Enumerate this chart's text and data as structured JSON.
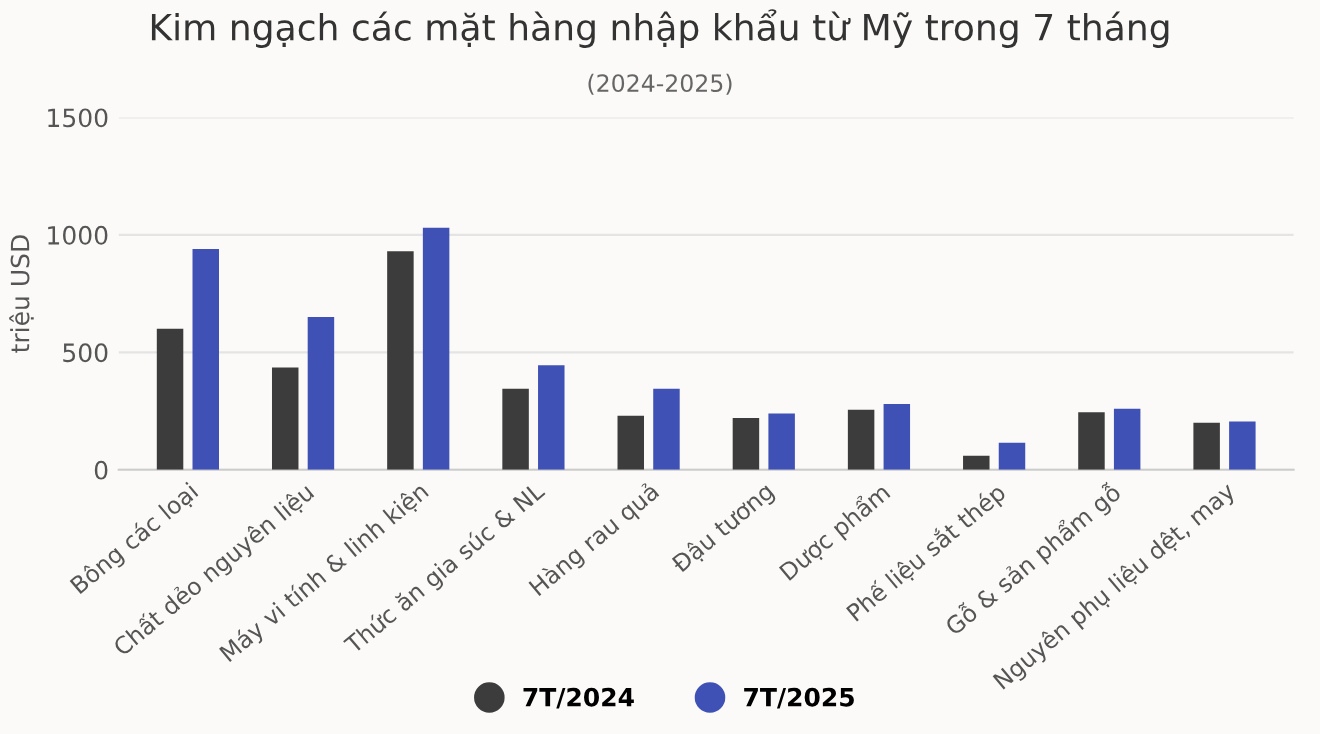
{
  "chart_data": {
    "type": "bar",
    "title": "Kim ngạch các mặt hàng nhập khẩu từ Mỹ trong 7 tháng",
    "subtitle": "(2024-2025)",
    "ylabel": "triệu USD",
    "categories": [
      "Bông các loại",
      "Chất dẻo nguyên liệu",
      "Máy vi tính & linh kiện",
      "Thức ăn gia súc & NL",
      "Hàng rau quả",
      "Đậu tương",
      "Dược phẩm",
      "Phế liệu sắt thép",
      "Gỗ & sản phẩm gỗ",
      "Nguyên phụ liệu dệt, may"
    ],
    "series": [
      {
        "name": "7T/2024",
        "color": "#3c3c3c",
        "values": [
          600,
          435,
          930,
          345,
          230,
          220,
          255,
          60,
          245,
          200
        ]
      },
      {
        "name": "7T/2025",
        "color": "#3f51b5",
        "values": [
          940,
          650,
          1030,
          445,
          345,
          240,
          280,
          115,
          260,
          205
        ]
      }
    ],
    "ylim": [
      0,
      1500
    ],
    "yticks": [
      0,
      500,
      1000,
      1500
    ],
    "grid": "y",
    "legend": "bottom"
  }
}
